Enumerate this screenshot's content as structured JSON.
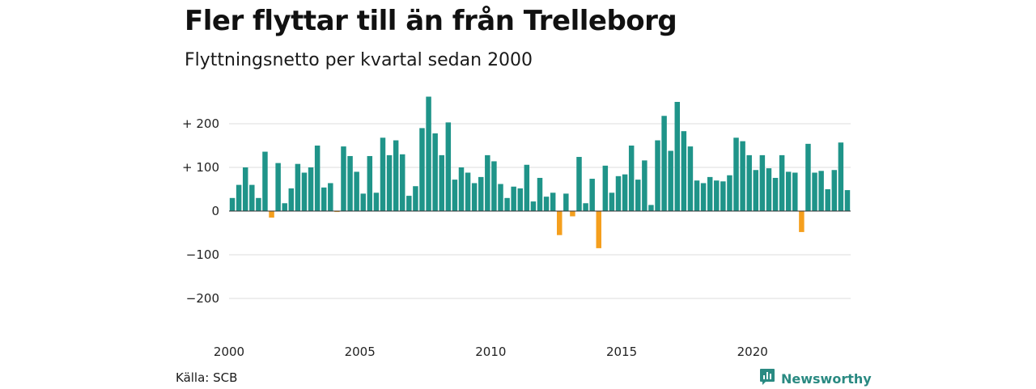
{
  "title": "Fler flyttar till än från Trelleborg",
  "subtitle": "Flyttningsnetto per kvartal sedan 2000",
  "source": "Källa: SCB",
  "brand": "Newsworthy",
  "colors": {
    "positive": "#1f9489",
    "negative": "#f59f1d",
    "grid": "#dddddd",
    "brand": "#2a8a82"
  },
  "chart_data": {
    "type": "bar",
    "title": "Fler flyttar till än från Trelleborg",
    "subtitle": "Flyttningsnetto per kvartal sedan 2000",
    "ylim": [
      -250,
      270
    ],
    "yticks": [
      {
        "value": 200,
        "label": "+ 200"
      },
      {
        "value": 100,
        "label": "+ 100"
      },
      {
        "value": 0,
        "label": "0"
      },
      {
        "value": -100,
        "label": "−100"
      },
      {
        "value": -200,
        "label": "−200"
      }
    ],
    "xticks": [
      "2000",
      "2005",
      "2010",
      "2015",
      "2020"
    ],
    "grid": true,
    "start_year": 2000,
    "values": [
      30,
      60,
      100,
      60,
      30,
      136,
      -15,
      110,
      18,
      52,
      108,
      88,
      100,
      150,
      54,
      64,
      -2,
      148,
      126,
      90,
      40,
      126,
      42,
      168,
      128,
      162,
      130,
      35,
      57,
      190,
      262,
      178,
      128,
      203,
      72,
      100,
      88,
      64,
      78,
      128,
      114,
      62,
      30,
      56,
      52,
      106,
      22,
      76,
      33,
      42,
      -55,
      40,
      -12,
      124,
      18,
      74,
      -85,
      104,
      42,
      80,
      84,
      150,
      72,
      116,
      14,
      162,
      218,
      138,
      250,
      183,
      148,
      70,
      64,
      78,
      70,
      68,
      82,
      168,
      160,
      128,
      94,
      128,
      98,
      76,
      128,
      90,
      88,
      -48,
      154,
      88,
      92,
      50,
      94,
      157,
      48
    ]
  }
}
